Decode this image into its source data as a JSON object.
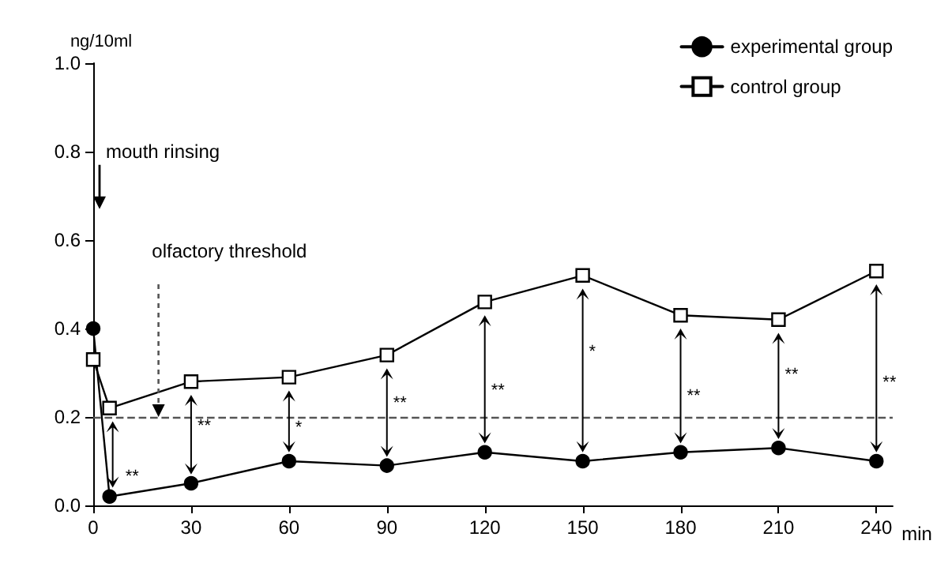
{
  "chart_data": {
    "type": "line",
    "xlabel": "min",
    "ylabel": "ng/10ml",
    "x": [
      0,
      5,
      30,
      60,
      90,
      120,
      150,
      180,
      210,
      240
    ],
    "series": [
      {
        "name": "experimental group",
        "color": "#000000",
        "marker": "circle",
        "values": [
          0.4,
          0.02,
          0.05,
          0.1,
          0.09,
          0.12,
          0.1,
          0.12,
          0.13,
          0.1
        ]
      },
      {
        "name": "control group",
        "color": "#000000",
        "marker": "square",
        "values": [
          0.33,
          0.22,
          0.28,
          0.29,
          0.34,
          0.46,
          0.52,
          0.43,
          0.42,
          0.53
        ]
      }
    ],
    "xlim": [
      0,
      245
    ],
    "xticks": [
      0,
      30,
      60,
      90,
      120,
      150,
      180,
      210,
      240
    ],
    "ylim": [
      0,
      1.0
    ],
    "yticks": [
      {
        "value": 0,
        "label": "0.0"
      },
      {
        "value": 0.2,
        "label": "0.2"
      },
      {
        "value": 0.4,
        "label": "0.4"
      },
      {
        "value": 0.6,
        "label": "0.6"
      },
      {
        "value": 0.8,
        "label": "0.8"
      },
      {
        "value": 1.0,
        "label": "1.0"
      }
    ],
    "ref_lines": [
      {
        "axis": "y",
        "value": 0.2,
        "label": "olfactory threshold",
        "line_style": "dashed",
        "color": "#555555"
      }
    ],
    "annotations": [
      "mouth rinsing",
      "**",
      "**",
      "*",
      "**",
      "**",
      "*",
      "**",
      "**",
      "**"
    ],
    "legend": "top right",
    "grid": false,
    "line_style": "solid"
  }
}
